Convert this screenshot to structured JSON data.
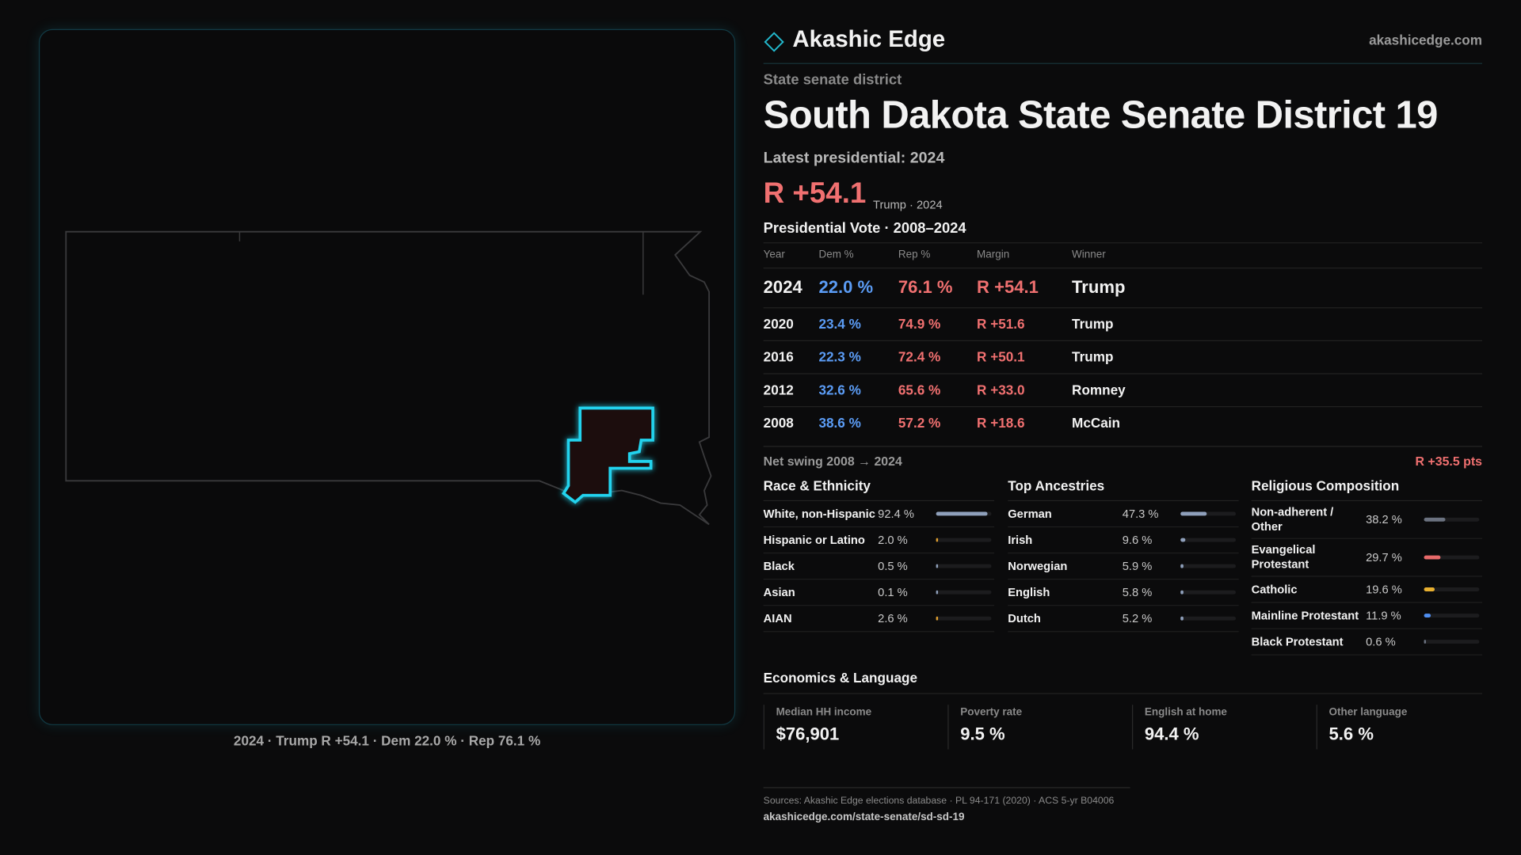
{
  "brand": {
    "name": "Akashic Edge",
    "site": "akashicedge.com"
  },
  "header": {
    "kicker": "State senate district",
    "title": "South Dakota State Senate District 19",
    "latest_label": "Latest presidential: 2024",
    "margin": "R +54.1",
    "margin_note": "Trump · 2024"
  },
  "map": {
    "caption": "2024 · Trump R +54.1 · Dem 22.0 % · Rep 76.1 %"
  },
  "vote_table": {
    "title": "Presidential Vote · 2008–2024",
    "columns": [
      "Year",
      "Dem %",
      "Rep %",
      "Margin",
      "Winner"
    ],
    "rows": [
      [
        "2024",
        "22.0 %",
        "76.1 %",
        "R +54.1",
        "Trump"
      ],
      [
        "2020",
        "23.4 %",
        "74.9 %",
        "R +51.6",
        "Trump"
      ],
      [
        "2016",
        "22.3 %",
        "72.4 %",
        "R +50.1",
        "Trump"
      ],
      [
        "2012",
        "32.6 %",
        "65.6 %",
        "R +33.0",
        "Romney"
      ],
      [
        "2008",
        "38.6 %",
        "57.2 %",
        "R +18.6",
        "McCain"
      ]
    ]
  },
  "swing": {
    "label": "Net swing 2008 → 2024",
    "value": "R +35.5 pts"
  },
  "race": {
    "title": "Race & Ethnicity",
    "items": [
      {
        "label": "White, non-Hispanic",
        "value": 92.4,
        "value_label": "92.4 %",
        "color": "#8fa0bb"
      },
      {
        "label": "Hispanic or Latino",
        "value": 2.0,
        "value_label": "2.0 %",
        "color": "#e0a030"
      },
      {
        "label": "Black",
        "value": 0.5,
        "value_label": "0.5 %",
        "color": "#8fa0bb"
      },
      {
        "label": "Asian",
        "value": 0.1,
        "value_label": "0.1 %",
        "color": "#8fa0bb"
      },
      {
        "label": "AIAN",
        "value": 2.6,
        "value_label": "2.6 %",
        "color": "#e0a030"
      }
    ]
  },
  "ancestry": {
    "title": "Top Ancestries",
    "items": [
      {
        "label": "German",
        "value": 47.3,
        "value_label": "47.3 %",
        "color": "#8fa0bb"
      },
      {
        "label": "Irish",
        "value": 9.6,
        "value_label": "9.6 %",
        "color": "#8fa0bb"
      },
      {
        "label": "Norwegian",
        "value": 5.9,
        "value_label": "5.9 %",
        "color": "#8fa0bb"
      },
      {
        "label": "English",
        "value": 5.8,
        "value_label": "5.8 %",
        "color": "#8fa0bb"
      },
      {
        "label": "Dutch",
        "value": 5.2,
        "value_label": "5.2 %",
        "color": "#8fa0bb"
      }
    ]
  },
  "religion": {
    "title": "Religious Composition",
    "items": [
      {
        "label": "Non-adherent / Other",
        "value": 38.2,
        "value_label": "38.2 %",
        "color": "#6b7280"
      },
      {
        "label": "Evangelical Protestant",
        "value": 29.7,
        "value_label": "29.7 %",
        "color": "#e86a6a"
      },
      {
        "label": "Catholic",
        "value": 19.6,
        "value_label": "19.6 %",
        "color": "#e8b030"
      },
      {
        "label": "Mainline Protestant",
        "value": 11.9,
        "value_label": "11.9 %",
        "color": "#4f8ef0"
      },
      {
        "label": "Black Protestant",
        "value": 0.6,
        "value_label": "0.6 %",
        "color": "#6b7280"
      }
    ]
  },
  "economics": {
    "title": "Economics & Language",
    "stats": [
      {
        "label": "Median HH income",
        "value": "$76,901"
      },
      {
        "label": "Poverty rate",
        "value": "9.5 %"
      },
      {
        "label": "English at home",
        "value": "94.4 %"
      },
      {
        "label": "Other language",
        "value": "5.6 %"
      }
    ]
  },
  "footer": {
    "sources": "Sources: Akashic Edge elections database · PL 94-171 (2020) · ACS 5-yr B04006",
    "url": "akashicedge.com/state-senate/sd-sd-19"
  }
}
